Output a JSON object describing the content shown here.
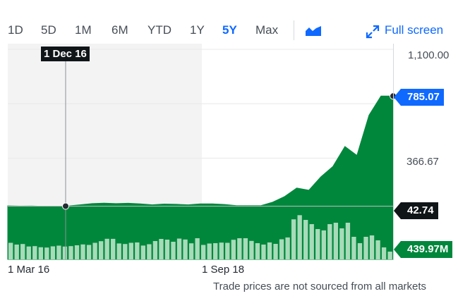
{
  "toolbar": {
    "ranges": [
      "1D",
      "5D",
      "1M",
      "6M",
      "YTD",
      "1Y",
      "5Y",
      "Max"
    ],
    "active_range": "5Y",
    "chart_type_icon": "area-chart-icon",
    "fullscreen_icon": "expand-arrows-icon",
    "fullscreen_label": "Full screen"
  },
  "colors": {
    "accent": "#0f69ff",
    "area": "#00873c",
    "volume": "#a8dbb9",
    "shaded_region": "#f3f3f3",
    "tag_dark": "#101518"
  },
  "crosshair": {
    "date_label": "1 Dec 16"
  },
  "tags": {
    "last_price": "785.07",
    "cursor_price": "42.74",
    "volume": "439.97M"
  },
  "chart_data": {
    "type": "area",
    "y_ticks": [
      "1,100.00",
      "366.67"
    ],
    "x_ticks": [
      "1 Mar 16",
      "1 Sep 18"
    ],
    "ylim": [
      -316,
      1100
    ],
    "price": {
      "x": [
        "Mar 2016",
        "May 2016",
        "Jul 2016",
        "Sep 2016",
        "Nov 2016",
        "Jan 2017",
        "Mar 2017",
        "May 2017",
        "Jul 2017",
        "Sep 2017",
        "Nov 2017",
        "Jan 2018",
        "Mar 2018",
        "May 2018",
        "Jul 2018",
        "Sep 2018",
        "Nov 2018",
        "Jan 2019",
        "Mar 2019",
        "May 2019",
        "Jul 2019",
        "Sep 2019",
        "Nov 2019",
        "Jan 2020",
        "Feb 2020",
        "Mar 2020",
        "May 2020",
        "Jul 2020",
        "Aug 2020",
        "Oct 2020",
        "Dec 2020",
        "Jan 2021",
        "Feb 2021"
      ],
      "values": [
        45,
        43,
        44,
        42,
        42,
        44,
        52,
        60,
        63,
        60,
        62,
        58,
        52,
        57,
        55,
        52,
        58,
        58,
        54,
        46,
        46,
        46,
        70,
        108,
        165,
        150,
        240,
        310,
        445,
        385,
        656,
        785,
        785
      ]
    },
    "volume": {
      "ylim": [
        0,
        660
      ],
      "values": [
        235,
        210,
        218,
        183,
        188,
        172,
        168,
        185,
        195,
        182,
        188,
        200,
        212,
        205,
        235,
        258,
        292,
        291,
        226,
        218,
        235,
        240,
        196,
        215,
        260,
        290,
        280,
        250,
        295,
        282,
        228,
        300,
        205,
        225,
        230,
        238,
        235,
        278,
        300,
        300,
        262,
        230,
        210,
        240,
        220,
        285,
        311,
        568,
        627,
        560,
        500,
        430,
        411,
        500,
        520,
        440,
        520,
        320,
        230,
        320,
        340,
        270,
        170,
        110
      ]
    }
  },
  "footnote": "Trade prices are not sourced from all markets"
}
